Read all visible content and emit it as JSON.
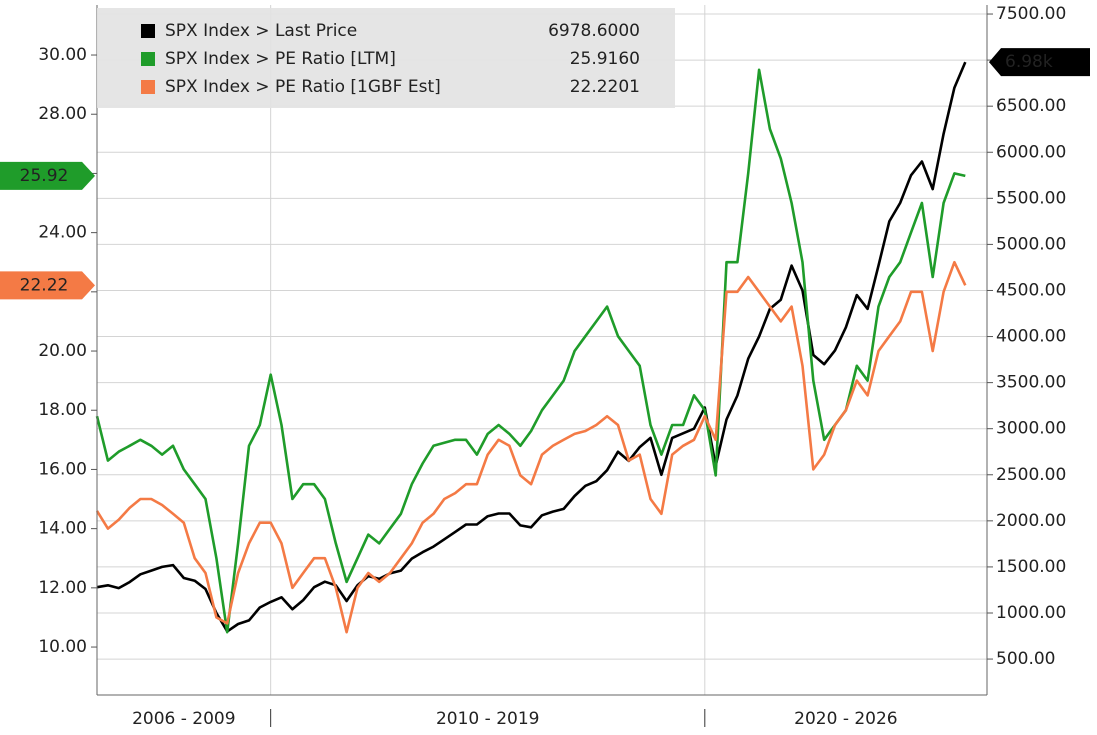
{
  "chart_data": {
    "type": "line",
    "x": [
      2006,
      2006.25,
      2006.5,
      2006.75,
      2007,
      2007.25,
      2007.5,
      2007.75,
      2008,
      2008.25,
      2008.5,
      2008.75,
      2009,
      2009.25,
      2009.5,
      2009.75,
      2010,
      2010.25,
      2010.5,
      2010.75,
      2011,
      2011.25,
      2011.5,
      2011.75,
      2012,
      2012.25,
      2012.5,
      2012.75,
      2013,
      2013.25,
      2013.5,
      2013.75,
      2014,
      2014.25,
      2014.5,
      2014.75,
      2015,
      2015.25,
      2015.5,
      2015.75,
      2016,
      2016.25,
      2016.5,
      2016.75,
      2017,
      2017.25,
      2017.5,
      2017.75,
      2018,
      2018.25,
      2018.5,
      2018.75,
      2019,
      2019.25,
      2019.5,
      2019.75,
      2020,
      2020.25,
      2020.5,
      2020.75,
      2021,
      2021.25,
      2021.5,
      2021.75,
      2022,
      2022.25,
      2022.5,
      2022.75,
      2023,
      2023.25,
      2023.5,
      2023.75,
      2024,
      2024.25,
      2024.5,
      2024.75,
      2025,
      2025.25,
      2025.5,
      2025.75,
      2026
    ],
    "xlim": [
      2006,
      2026.5
    ],
    "x_periods": [
      {
        "label": "2006 - 2009",
        "start": 2006,
        "end": 2010
      },
      {
        "label": "2010 - 2019",
        "start": 2010,
        "end": 2020
      },
      {
        "label": "2020 - 2026",
        "start": 2020,
        "end": 2026.5
      }
    ],
    "ylim": [
      8.38,
      31.69
    ],
    "yticks": [
      {
        "value": 10,
        "label": "10.00"
      },
      {
        "value": 12,
        "label": "12.00"
      },
      {
        "value": 14,
        "label": "14.00"
      },
      {
        "value": 16,
        "label": "16.00"
      },
      {
        "value": 18,
        "label": "18.00"
      },
      {
        "value": 20,
        "label": "20.00"
      },
      {
        "value": 22,
        "label": "22.00"
      },
      {
        "value": 24,
        "label": "24.00"
      },
      {
        "value": 26,
        "label": "26.00"
      },
      {
        "value": 28,
        "label": "28.00"
      },
      {
        "value": 30,
        "label": "30.00"
      }
    ],
    "y2lim": [
      110,
      7598
    ],
    "y2ticks": [
      {
        "value": 500,
        "label": "500.00"
      },
      {
        "value": 1000,
        "label": "1000.00"
      },
      {
        "value": 1500,
        "label": "1500.00"
      },
      {
        "value": 2000,
        "label": "2000.00"
      },
      {
        "value": 2500,
        "label": "2500.00"
      },
      {
        "value": 3000,
        "label": "3000.00"
      },
      {
        "value": 3500,
        "label": "3500.00"
      },
      {
        "value": 4000,
        "label": "4000.00"
      },
      {
        "value": 4500,
        "label": "4500.00"
      },
      {
        "value": 5000,
        "label": "5000.00"
      },
      {
        "value": 5500,
        "label": "5500.00"
      },
      {
        "value": 6000,
        "label": "6000.00"
      },
      {
        "value": 6500,
        "label": "6500.00"
      },
      {
        "value": 7000,
        "label": "7000.00"
      },
      {
        "value": 7500,
        "label": "7500.00"
      }
    ],
    "grid": true,
    "series": [
      {
        "name": "SPX Index > Last Price",
        "color": "#000000",
        "axis": "y2",
        "legend_value": "6978.6000",
        "tag_label": "6.98k",
        "tag_text_color": "#ffffff",
        "values": [
          1280,
          1300,
          1270,
          1335,
          1420,
          1460,
          1500,
          1520,
          1380,
          1350,
          1260,
          1000,
          800,
          880,
          920,
          1060,
          1120,
          1170,
          1040,
          1140,
          1280,
          1340,
          1300,
          1130,
          1300,
          1400,
          1370,
          1430,
          1460,
          1590,
          1660,
          1720,
          1800,
          1880,
          1960,
          1960,
          2050,
          2080,
          2080,
          1950,
          1930,
          2060,
          2100,
          2130,
          2270,
          2380,
          2430,
          2550,
          2750,
          2650,
          2800,
          2900,
          2500,
          2900,
          2950,
          3000,
          3230,
          2600,
          3100,
          3360,
          3760,
          4000,
          4300,
          4400,
          4770,
          4500,
          3800,
          3700,
          3850,
          4100,
          4450,
          4300,
          4770,
          5250,
          5450,
          5750,
          5900,
          5600,
          6200,
          6700,
          6978.6
        ]
      },
      {
        "name": "SPX Index > PE Ratio [LTM]",
        "color": "#1f9c2a",
        "axis": "y",
        "legend_value": "25.9160",
        "tag_label": "25.92",
        "tag_text_color": "#000000",
        "values": [
          17.8,
          16.3,
          16.6,
          16.8,
          17.0,
          16.8,
          16.5,
          16.8,
          16.0,
          15.5,
          15.0,
          13.0,
          10.5,
          13.5,
          16.8,
          17.5,
          19.2,
          17.5,
          15.0,
          15.5,
          15.5,
          15.0,
          13.5,
          12.2,
          13.0,
          13.8,
          13.5,
          14.0,
          14.5,
          15.5,
          16.2,
          16.8,
          16.9,
          17.0,
          17.0,
          16.5,
          17.2,
          17.5,
          17.2,
          16.8,
          17.3,
          18.0,
          18.5,
          19.0,
          20.0,
          20.5,
          21.0,
          21.5,
          20.5,
          20.0,
          19.5,
          17.5,
          16.5,
          17.5,
          17.5,
          18.5,
          18.0,
          15.8,
          23.0,
          23.0,
          26.0,
          29.5,
          27.5,
          26.5,
          25.0,
          23.0,
          19.0,
          17.0,
          17.5,
          18.0,
          19.5,
          19.0,
          21.5,
          22.5,
          23.0,
          24.0,
          25.0,
          22.5,
          25.0,
          26.0,
          25.916
        ]
      },
      {
        "name": "SPX Index > PE Ratio [1GBF Est]",
        "color": "#f47a45",
        "axis": "y",
        "legend_value": "22.2201",
        "tag_label": "22.22",
        "tag_text_color": "#ffffff",
        "values": [
          14.6,
          14.0,
          14.3,
          14.7,
          15.0,
          15.0,
          14.8,
          14.5,
          14.2,
          13.0,
          12.5,
          11.0,
          10.8,
          12.5,
          13.5,
          14.2,
          14.2,
          13.5,
          12.0,
          12.5,
          13.0,
          13.0,
          12.0,
          10.5,
          12.0,
          12.5,
          12.2,
          12.5,
          13.0,
          13.5,
          14.2,
          14.5,
          15.0,
          15.2,
          15.5,
          15.5,
          16.5,
          17.0,
          16.8,
          15.8,
          15.5,
          16.5,
          16.8,
          17.0,
          17.2,
          17.3,
          17.5,
          17.8,
          17.5,
          16.3,
          16.5,
          15.0,
          14.5,
          16.5,
          16.8,
          17.0,
          17.8,
          17.0,
          22.0,
          22.0,
          22.5,
          22.0,
          21.5,
          21.0,
          21.5,
          19.5,
          16.0,
          16.5,
          17.5,
          18.0,
          19.0,
          18.5,
          20.0,
          20.5,
          21.0,
          22.0,
          22.0,
          20.0,
          22.0,
          23.0,
          22.2201
        ]
      }
    ]
  }
}
